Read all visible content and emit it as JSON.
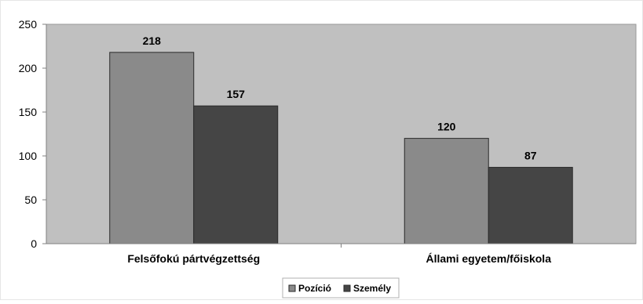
{
  "chart_data": {
    "type": "bar",
    "categories": [
      "Felsőfokú pártvégzettség",
      "Állami egyetem/főiskola"
    ],
    "series": [
      {
        "name": "Pozíció",
        "values": [
          218,
          120
        ],
        "color": "#8a8a8a"
      },
      {
        "name": "Személy",
        "values": [
          157,
          87
        ],
        "color": "#454545"
      }
    ],
    "ylim": [
      0,
      250
    ],
    "yticks": [
      0,
      50,
      100,
      150,
      200,
      250
    ],
    "grid": false,
    "legend": "bottom",
    "plot_background": "#c0c0c0"
  }
}
